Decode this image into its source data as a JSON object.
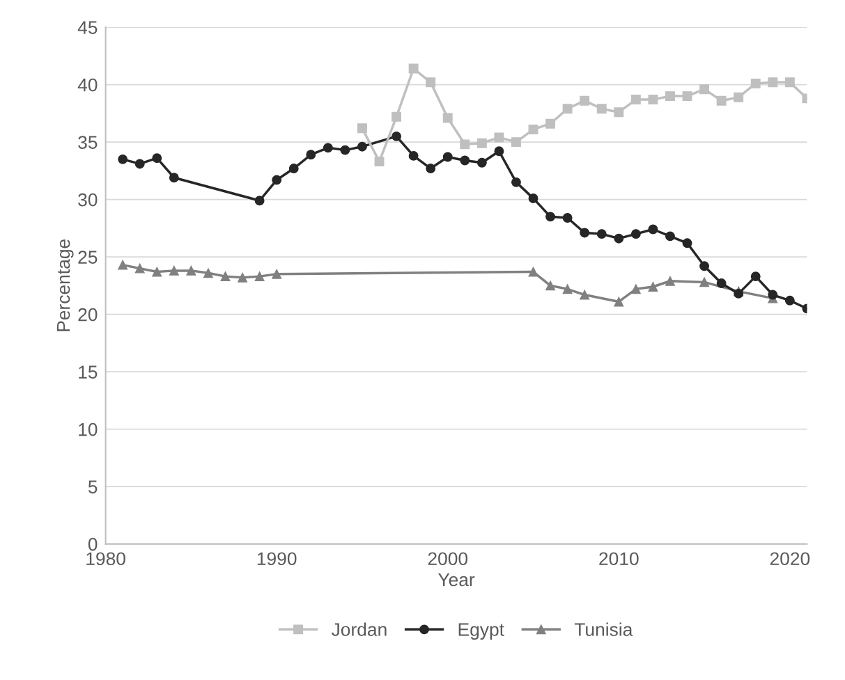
{
  "chart_data": {
    "type": "line",
    "xlabel": "Year",
    "ylabel": "Percentage",
    "xlim": [
      1980,
      2021
    ],
    "xticks": [
      1980,
      1990,
      2000,
      2010,
      2020
    ],
    "ylim": [
      0,
      45
    ],
    "yticks": [
      0,
      5,
      10,
      15,
      20,
      25,
      30,
      35,
      40,
      45
    ],
    "grid": "y",
    "legend": "bottom",
    "line_style": "solid",
    "series": [
      {
        "name": "Jordan",
        "color": "#bfbfbf",
        "marker": "square",
        "x": [
          1995,
          1996,
          1997,
          1998,
          1999,
          2000,
          2001,
          2002,
          2003,
          2004,
          2005,
          2006,
          2007,
          2008,
          2009,
          2010,
          2011,
          2012,
          2013,
          2014,
          2015,
          2016,
          2017,
          2018,
          2019,
          2020,
          2021
        ],
        "values": [
          36.2,
          33.3,
          37.2,
          41.4,
          40.2,
          37.1,
          34.8,
          34.9,
          35.4,
          35.0,
          36.1,
          36.6,
          37.9,
          38.6,
          37.9,
          37.6,
          38.7,
          38.7,
          39.0,
          39.0,
          39.6,
          38.6,
          38.9,
          40.1,
          40.2,
          40.2,
          38.8
        ]
      },
      {
        "name": "Egypt",
        "color": "#262626",
        "marker": "circle",
        "x": [
          1981,
          1982,
          1983,
          1984,
          1989,
          1990,
          1991,
          1992,
          1993,
          1994,
          1995,
          1997,
          1998,
          1999,
          2000,
          2001,
          2002,
          2003,
          2004,
          2005,
          2006,
          2007,
          2008,
          2009,
          2010,
          2011,
          2012,
          2013,
          2014,
          2015,
          2016,
          2017,
          2018,
          2019,
          2020,
          2021
        ],
        "values": [
          33.5,
          33.1,
          33.6,
          31.9,
          29.9,
          31.7,
          32.7,
          33.9,
          34.5,
          34.3,
          34.6,
          35.5,
          33.8,
          32.7,
          33.7,
          33.4,
          33.2,
          34.2,
          31.5,
          30.1,
          28.5,
          28.4,
          27.1,
          27.0,
          26.6,
          27.0,
          27.4,
          26.8,
          26.2,
          24.2,
          22.7,
          21.8,
          23.3,
          21.7,
          21.2,
          20.5
        ]
      },
      {
        "name": "Tunisia",
        "color": "#808080",
        "marker": "triangle",
        "x": [
          1981,
          1982,
          1983,
          1984,
          1985,
          1986,
          1987,
          1988,
          1989,
          1990,
          2005,
          2006,
          2007,
          2008,
          2010,
          2011,
          2012,
          2013,
          2015,
          2017,
          2019
        ],
        "values": [
          24.3,
          24.0,
          23.7,
          23.8,
          23.8,
          23.6,
          23.3,
          23.2,
          23.3,
          23.5,
          23.7,
          22.5,
          22.2,
          21.7,
          21.1,
          22.2,
          22.4,
          22.9,
          22.8,
          22.0,
          21.4
        ]
      }
    ]
  }
}
